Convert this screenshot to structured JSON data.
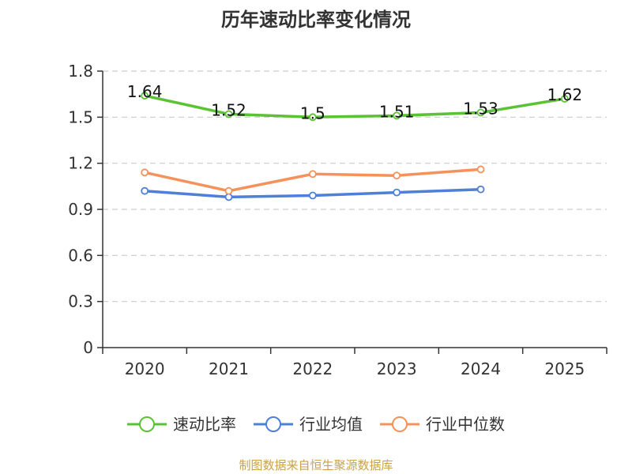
{
  "chart_data": {
    "type": "line",
    "title": "历年速动比率变化情况",
    "categories": [
      "2020",
      "2021",
      "2022",
      "2023",
      "2024",
      "2025"
    ],
    "y_ticks": [
      "0",
      "0.3",
      "0.6",
      "0.9",
      "1.2",
      "1.5",
      "1.8"
    ],
    "ylim": [
      0,
      1.8
    ],
    "grid": true,
    "legend_position": "bottom",
    "series": [
      {
        "name": "速动比率",
        "color": "#5bc236",
        "values": [
          1.64,
          1.52,
          1.5,
          1.51,
          1.53,
          1.62
        ],
        "labels": [
          "1.64",
          "1.52",
          "1.5",
          "1.51",
          "1.53",
          "1.62"
        ]
      },
      {
        "name": "行业均值",
        "color": "#4e7fd9",
        "values": [
          1.02,
          0.98,
          0.99,
          1.01,
          1.03,
          null
        ]
      },
      {
        "name": "行业中位数",
        "color": "#f5915a",
        "values": [
          1.14,
          1.02,
          1.13,
          1.12,
          1.16,
          null
        ]
      }
    ],
    "source": "制图数据来自恒生聚源数据库"
  }
}
